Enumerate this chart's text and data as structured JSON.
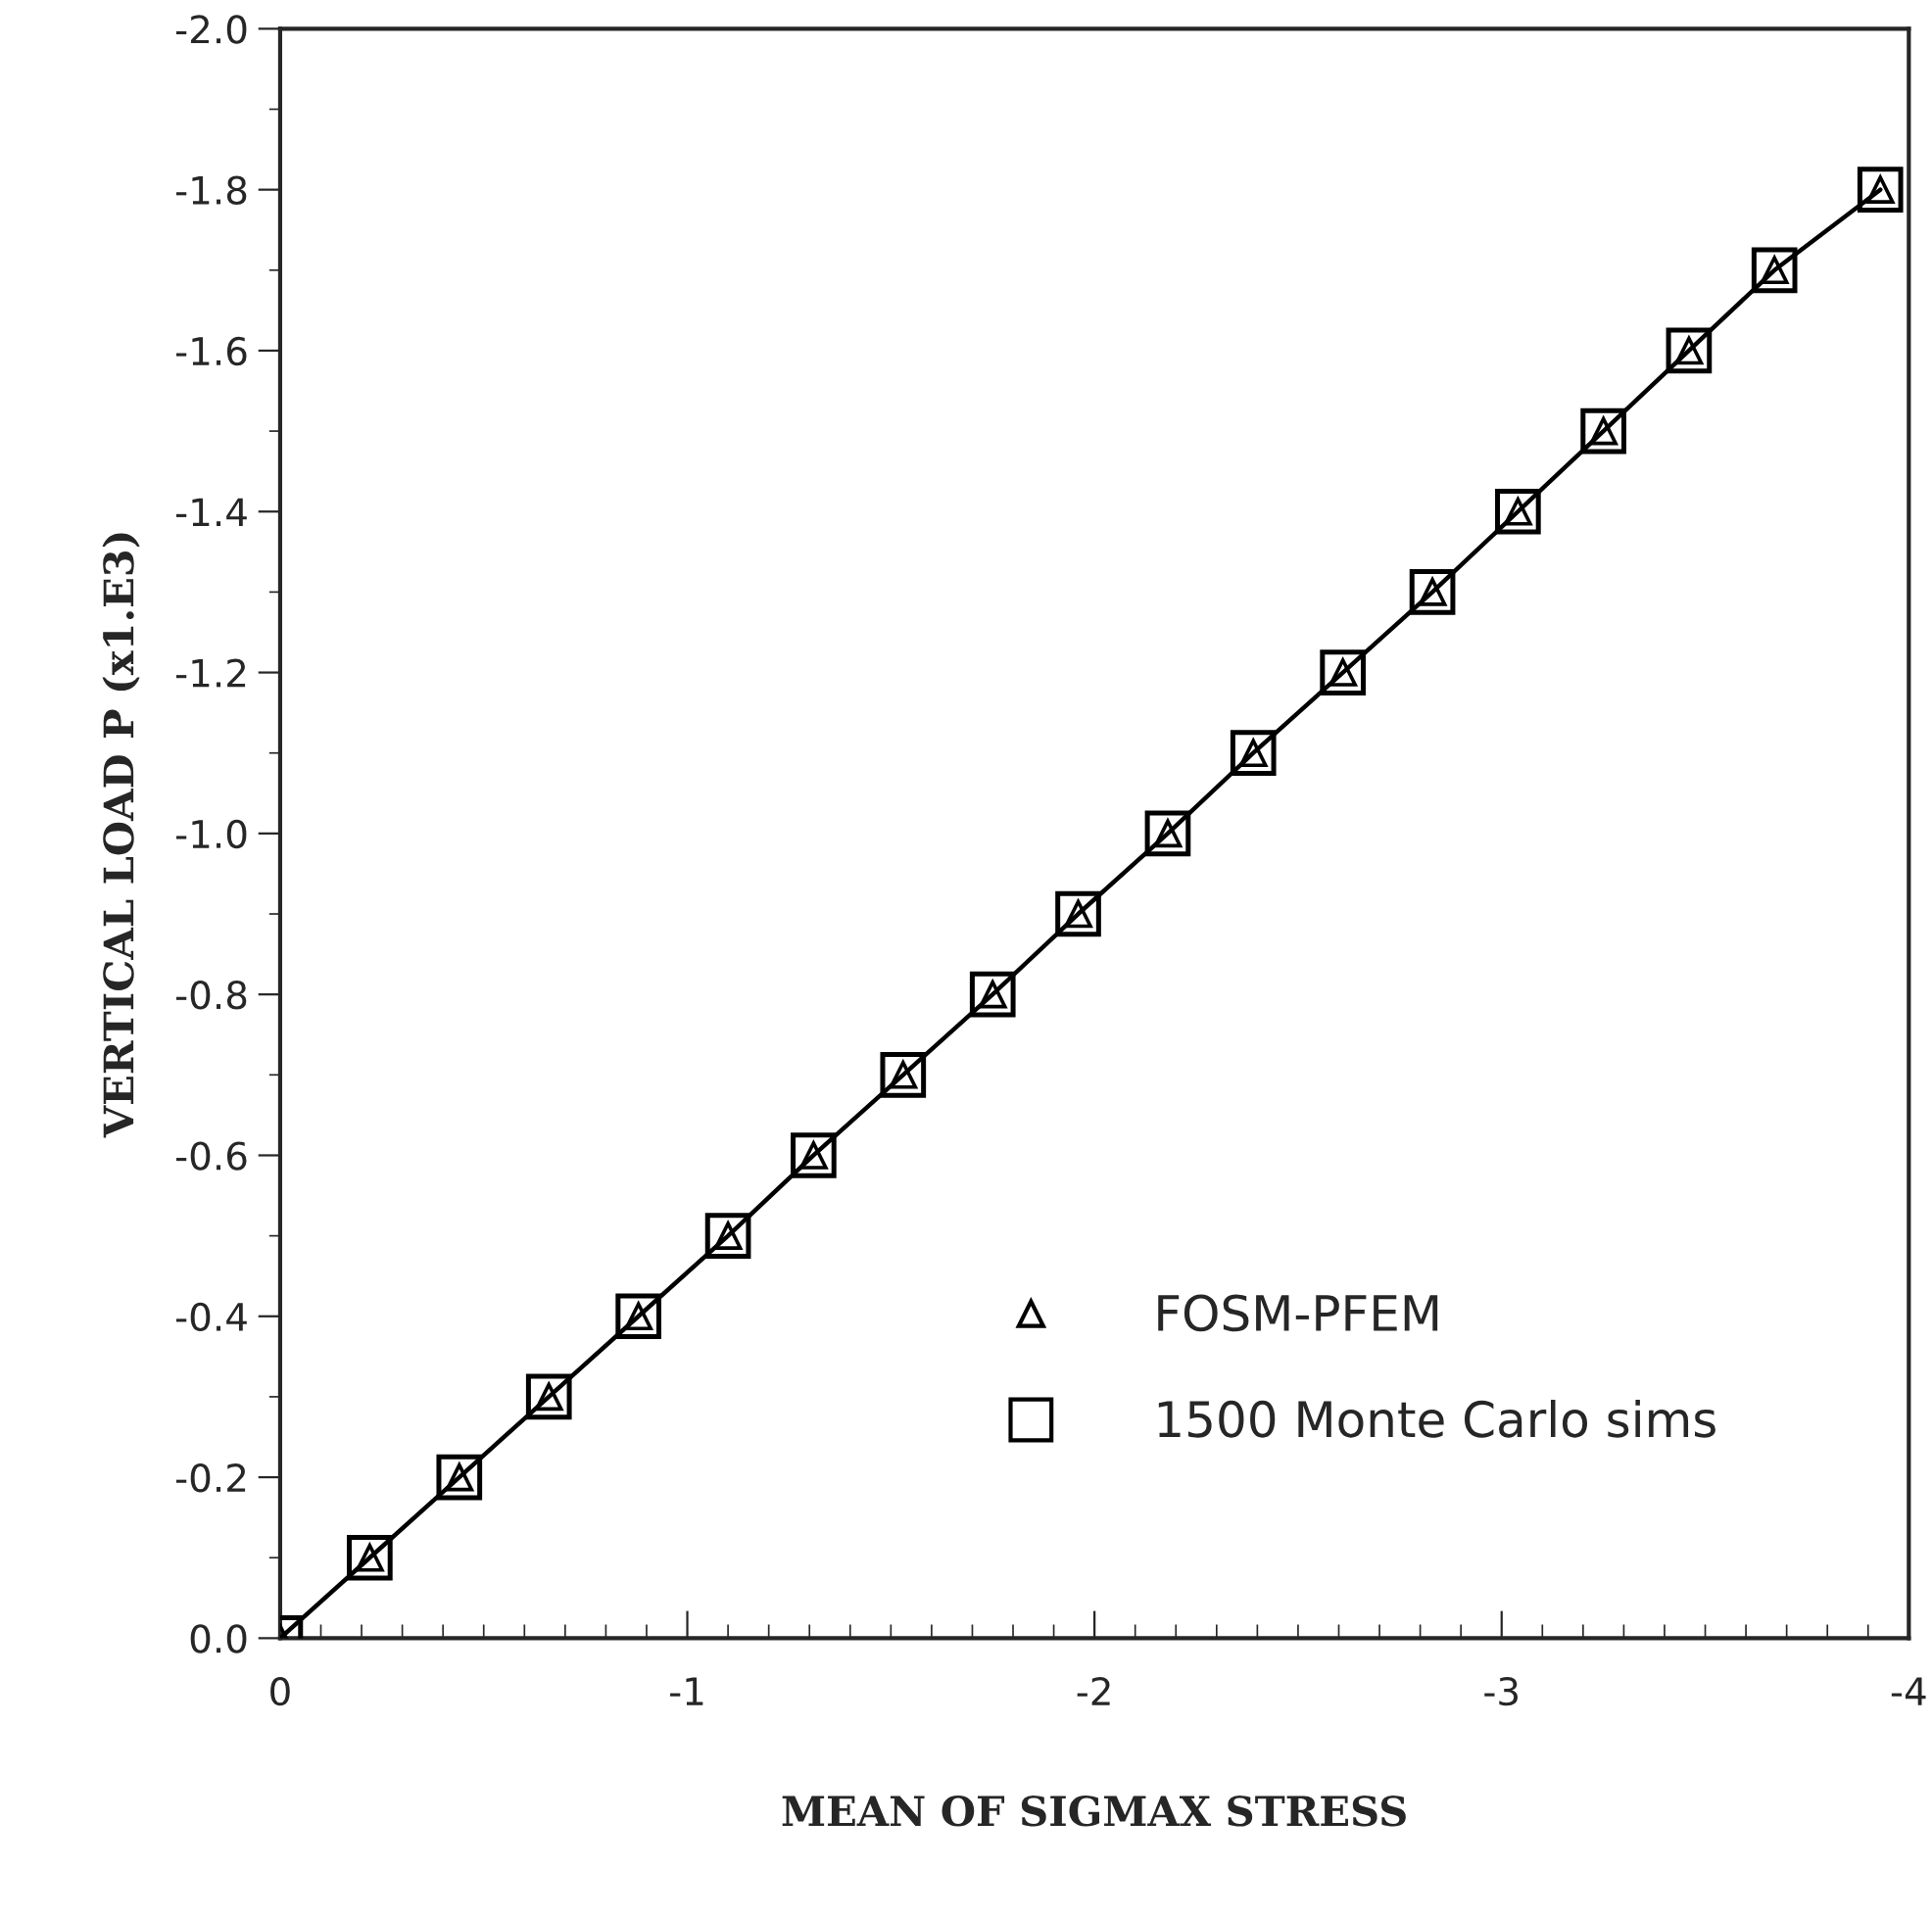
{
  "chart_data": {
    "type": "line",
    "xlabel": "MEAN OF SIGMAX STRESS",
    "ylabel": "VERTICAL LOAD P (x1.E3)",
    "xlim": [
      0,
      -4
    ],
    "ylim": [
      0,
      -2
    ],
    "xticks": [
      0,
      -1,
      -2,
      -3,
      -4
    ],
    "yticks": [
      {
        "value": 0,
        "label": "0.0"
      },
      -0.2,
      -0.4,
      -0.6,
      -0.8,
      {
        "value": -1,
        "label": "-1.0"
      },
      -1.2,
      -1.4,
      -1.6,
      -1.8,
      {
        "value": -2,
        "label": "-2.0"
      }
    ],
    "x": [
      0,
      -0.22,
      -0.44,
      -0.66,
      -0.88,
      -1.1,
      -1.31,
      -1.53,
      -1.75,
      -1.96,
      -2.18,
      -2.39,
      -2.61,
      -2.83,
      -3.04,
      -3.25,
      -3.46,
      -3.67,
      -3.93
    ],
    "grid": false,
    "legend": "bottom right",
    "series": [
      {
        "name": "FOSM-PFEM",
        "marker": "triangle",
        "line_style": "solid",
        "color": "#000000",
        "values": [
          0,
          -0.1,
          -0.2,
          -0.3,
          -0.4,
          -0.5,
          -0.6,
          -0.7,
          -0.8,
          -0.9,
          -1.0,
          -1.1,
          -1.2,
          -1.3,
          -1.4,
          -1.5,
          -1.6,
          -1.7,
          -1.8
        ]
      },
      {
        "name": "1500 Monte Carlo sims",
        "type": "scatter",
        "marker": "square",
        "color": "#000000",
        "values": [
          0,
          -0.1,
          -0.2,
          -0.3,
          -0.4,
          -0.5,
          -0.6,
          -0.7,
          -0.8,
          -0.9,
          -1.0,
          -1.1,
          -1.2,
          -1.3,
          -1.4,
          -1.5,
          -1.6,
          -1.7,
          -1.8
        ]
      }
    ]
  }
}
